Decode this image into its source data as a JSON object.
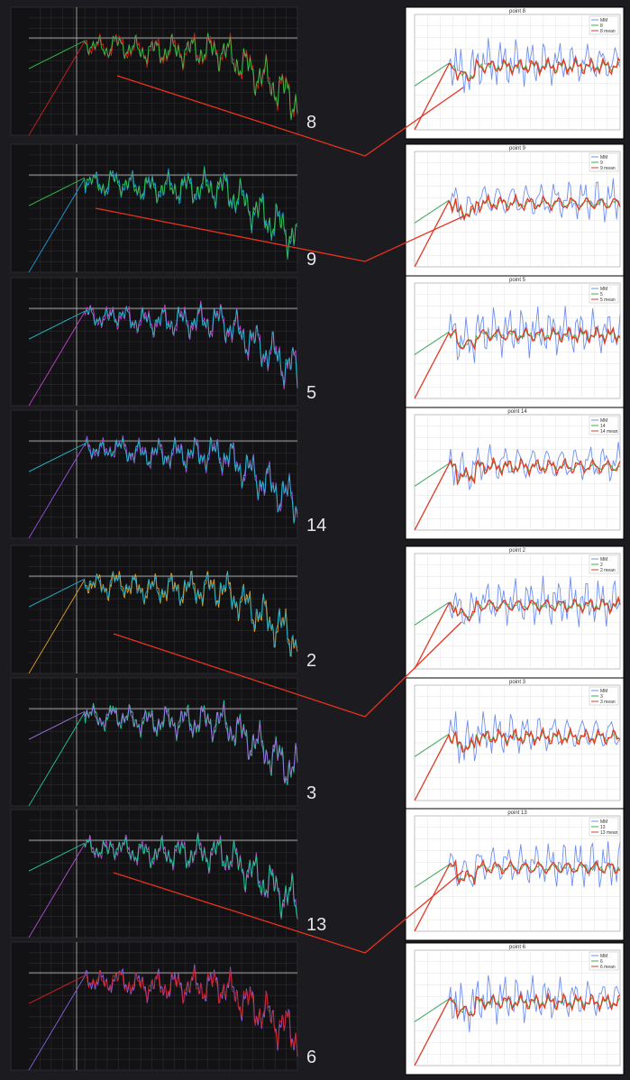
{
  "panels": [
    {
      "label": "8",
      "title": "point 8",
      "legend": [
        "MM",
        "8",
        "8 mean"
      ],
      "colors": [
        "#2fbf4a",
        "#d21f1f"
      ]
    },
    {
      "label": "9",
      "title": "point 9",
      "legend": [
        "MM",
        "9",
        "9 mean"
      ],
      "colors": [
        "#2fbf4a",
        "#1e9be0"
      ]
    },
    {
      "label": "5",
      "title": "point 5",
      "legend": [
        "MM",
        "5",
        "5 mean"
      ],
      "colors": [
        "#22b8c8",
        "#c640d0"
      ]
    },
    {
      "label": "14",
      "title": "point 14",
      "legend": [
        "MM",
        "14",
        "14 mean"
      ],
      "colors": [
        "#22b8c8",
        "#a050e0"
      ]
    },
    {
      "label": "2",
      "title": "point 2",
      "legend": [
        "MM",
        "2",
        "2 mean"
      ],
      "colors": [
        "#22b0d0",
        "#e0a020"
      ]
    },
    {
      "label": "3",
      "title": "point 3",
      "legend": [
        "MM",
        "3",
        "3 mean"
      ],
      "colors": [
        "#9a70e0",
        "#20c890"
      ]
    },
    {
      "label": "13",
      "title": "point 13",
      "legend": [
        "MM",
        "13",
        "13 mean"
      ],
      "colors": [
        "#20c890",
        "#b050d0"
      ]
    },
    {
      "label": "6",
      "title": "point 6",
      "legend": [
        "MM",
        "6",
        "6 mean"
      ],
      "colors": [
        "#d02020",
        "#8a60e0"
      ]
    }
  ]
}
